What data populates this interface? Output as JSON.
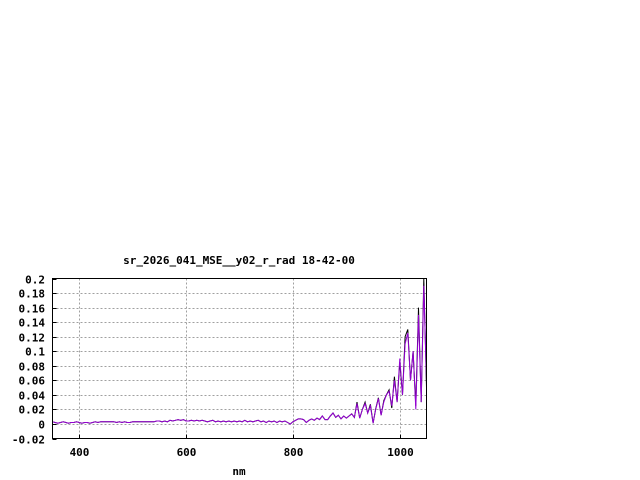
{
  "chart_data": {
    "type": "line",
    "title": "sr_2026_041_MSE__y02_r_rad 18-42-00",
    "xlabel": "nm",
    "ylabel": "",
    "xlim": [
      350,
      1050
    ],
    "ylim": [
      -0.02,
      0.2
    ],
    "xticks": [
      400,
      600,
      800,
      1000
    ],
    "yticks": [
      "-0.02",
      "0",
      "0.02",
      "0.04",
      "0.06",
      "0.08",
      "0.1",
      "0.12",
      "0.14",
      "0.16",
      "0.18",
      "0.2"
    ],
    "grid": true,
    "colors": [
      "#000000",
      "#9400d3"
    ],
    "x": [
      350,
      355,
      360,
      365,
      370,
      375,
      380,
      385,
      390,
      395,
      400,
      405,
      410,
      415,
      420,
      425,
      430,
      435,
      440,
      445,
      450,
      455,
      460,
      465,
      470,
      475,
      480,
      485,
      490,
      495,
      500,
      505,
      510,
      515,
      520,
      525,
      530,
      535,
      540,
      545,
      550,
      555,
      560,
      565,
      570,
      575,
      580,
      585,
      590,
      595,
      600,
      605,
      610,
      615,
      620,
      625,
      630,
      635,
      640,
      645,
      650,
      655,
      660,
      665,
      670,
      675,
      680,
      685,
      690,
      695,
      700,
      705,
      710,
      715,
      720,
      725,
      730,
      735,
      740,
      745,
      750,
      755,
      760,
      765,
      770,
      775,
      780,
      785,
      790,
      795,
      800,
      805,
      810,
      815,
      820,
      825,
      830,
      835,
      840,
      845,
      850,
      855,
      860,
      865,
      870,
      875,
      880,
      885,
      890,
      895,
      900,
      905,
      910,
      915,
      920,
      925,
      930,
      935,
      940,
      945,
      950,
      955,
      960,
      965,
      970,
      975,
      980,
      985,
      990,
      995,
      1000,
      1005,
      1010,
      1015,
      1020,
      1025,
      1030,
      1035,
      1040,
      1045,
      1050
    ],
    "series": [
      {
        "values": [
          0.003,
          0.002,
          0.001,
          0.002,
          0.003,
          0.002,
          0.001,
          0.002,
          0.002,
          0.003,
          0.002,
          0.001,
          0.002,
          0.002,
          0.001,
          0.002,
          0.003,
          0.002,
          0.003,
          0.003,
          0.003,
          0.003,
          0.003,
          0.003,
          0.002,
          0.003,
          0.002,
          0.003,
          0.002,
          0.002,
          0.003,
          0.003,
          0.003,
          0.003,
          0.003,
          0.003,
          0.003,
          0.003,
          0.003,
          0.004,
          0.004,
          0.003,
          0.004,
          0.003,
          0.005,
          0.004,
          0.005,
          0.006,
          0.005,
          0.006,
          0.004,
          0.004,
          0.005,
          0.004,
          0.005,
          0.004,
          0.005,
          0.004,
          0.003,
          0.004,
          0.005,
          0.003,
          0.004,
          0.003,
          0.004,
          0.003,
          0.004,
          0.003,
          0.004,
          0.003,
          0.004,
          0.003,
          0.005,
          0.003,
          0.004,
          0.003,
          0.004,
          0.005,
          0.003,
          0.004,
          0.002,
          0.004,
          0.003,
          0.004,
          0.002,
          0.004,
          0.003,
          0.004,
          0.002,
          0.0,
          0.003,
          0.005,
          0.007,
          0.007,
          0.006,
          0.002,
          0.005,
          0.007,
          0.005,
          0.008,
          0.006,
          0.011,
          0.006,
          0.006,
          0.011,
          0.015,
          0.009,
          0.012,
          0.007,
          0.011,
          0.008,
          0.011,
          0.014,
          0.009,
          0.03,
          0.008,
          0.02,
          0.03,
          0.015,
          0.027,
          0.001,
          0.021,
          0.036,
          0.012,
          0.032,
          0.04,
          0.047,
          0.022,
          0.065,
          0.03,
          0.085,
          0.04,
          0.12,
          0.13,
          0.06,
          0.1,
          0.025,
          0.16,
          0.03,
          0.2,
          0.05
        ]
      },
      {
        "values": [
          0.003,
          0.002,
          0.001,
          0.002,
          0.003,
          0.002,
          0.001,
          0.002,
          0.002,
          0.003,
          0.002,
          0.001,
          0.002,
          0.002,
          0.001,
          0.002,
          0.003,
          0.002,
          0.003,
          0.003,
          0.003,
          0.003,
          0.003,
          0.003,
          0.002,
          0.003,
          0.002,
          0.003,
          0.002,
          0.002,
          0.003,
          0.003,
          0.003,
          0.003,
          0.003,
          0.003,
          0.003,
          0.003,
          0.003,
          0.004,
          0.004,
          0.003,
          0.004,
          0.003,
          0.005,
          0.004,
          0.005,
          0.006,
          0.005,
          0.006,
          0.004,
          0.004,
          0.005,
          0.004,
          0.005,
          0.004,
          0.005,
          0.004,
          0.003,
          0.004,
          0.005,
          0.003,
          0.004,
          0.003,
          0.004,
          0.003,
          0.004,
          0.003,
          0.004,
          0.003,
          0.004,
          0.003,
          0.005,
          0.003,
          0.004,
          0.003,
          0.004,
          0.005,
          0.003,
          0.004,
          0.002,
          0.004,
          0.003,
          0.004,
          0.002,
          0.004,
          0.003,
          0.004,
          0.002,
          0.0,
          0.003,
          0.005,
          0.007,
          0.007,
          0.006,
          0.002,
          0.005,
          0.007,
          0.005,
          0.008,
          0.006,
          0.011,
          0.006,
          0.006,
          0.011,
          0.015,
          0.009,
          0.012,
          0.007,
          0.011,
          0.008,
          0.011,
          0.014,
          0.009,
          0.028,
          0.008,
          0.02,
          0.028,
          0.015,
          0.025,
          0.001,
          0.02,
          0.035,
          0.012,
          0.03,
          0.04,
          0.045,
          0.025,
          0.06,
          0.03,
          0.09,
          0.04,
          0.11,
          0.125,
          0.06,
          0.1,
          0.02,
          0.15,
          0.03,
          0.19,
          0.06
        ]
      }
    ]
  }
}
